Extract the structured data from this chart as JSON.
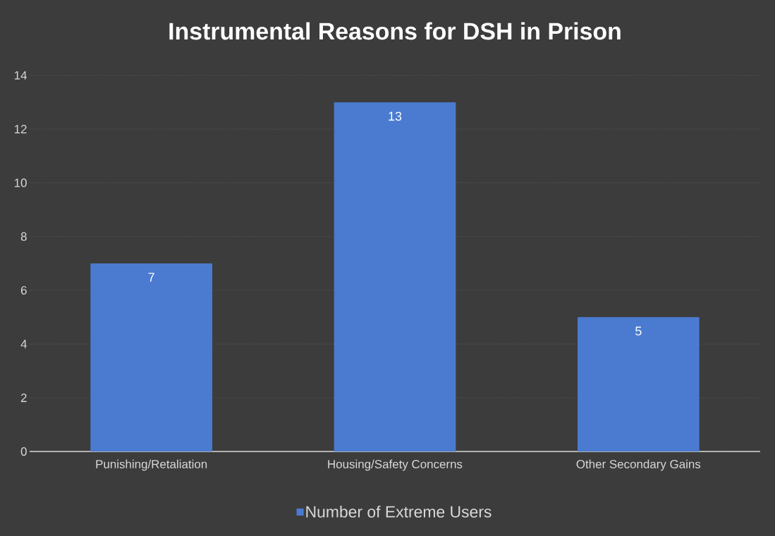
{
  "chart_data": {
    "type": "bar",
    "title": "Instrumental Reasons for DSH in Prison",
    "categories": [
      "Punishing/Retaliation",
      "Housing/Safety Concerns",
      "Other Secondary Gains"
    ],
    "series": [
      {
        "name": "Number of Extreme Users",
        "color": "#4a7bd0",
        "values": [
          7,
          13,
          5
        ]
      }
    ],
    "ylim": [
      0,
      14
    ],
    "yticks": [
      0,
      2,
      4,
      6,
      8,
      10,
      12,
      14
    ],
    "grid": "y",
    "legend": "bottom",
    "data_labels": true
  }
}
